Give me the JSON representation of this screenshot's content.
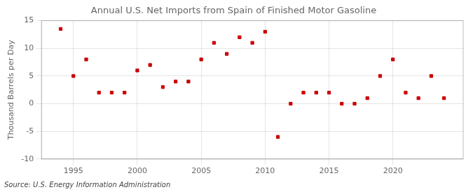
{
  "chart_data": {
    "type": "scatter",
    "title": "Annual U.S. Net Imports from Spain of Finished Motor Gasoline",
    "ylabel": "Thousand Barrels per Day",
    "source": "Source: U.S. Energy Information Administration",
    "x": [
      1994,
      1995,
      1996,
      1997,
      1998,
      1999,
      2000,
      2001,
      2002,
      2003,
      2004,
      2005,
      2006,
      2007,
      2008,
      2009,
      2010,
      2011,
      2012,
      2013,
      2014,
      2015,
      2016,
      2017,
      2018,
      2019,
      2020,
      2021,
      2022,
      2023,
      2024
    ],
    "values": [
      13.5,
      5.0,
      8.0,
      2.0,
      2.0,
      2.0,
      6.0,
      7.0,
      3.0,
      4.0,
      4.0,
      8.0,
      11.0,
      9.0,
      12.0,
      11.0,
      13.0,
      -6.0,
      0.0,
      2.0,
      2.0,
      2.0,
      0.0,
      0.0,
      1.0,
      5.0,
      8.0,
      2.0,
      1.0,
      5.0,
      1.0
    ],
    "color": "#cc0000",
    "marker": "square",
    "xlim": [
      1992.5,
      2025.5
    ],
    "xticks": [
      1995,
      2000,
      2005,
      2010,
      2015,
      2020
    ],
    "ylim": [
      -10,
      15
    ],
    "yticks": [
      -10,
      -5,
      0,
      5,
      10,
      15
    ],
    "grid": true
  }
}
